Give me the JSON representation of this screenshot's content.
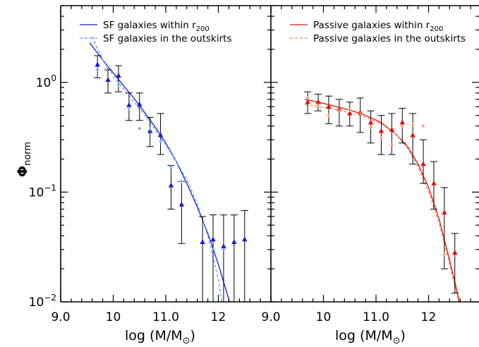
{
  "chart_data": [
    {
      "type": "scatter",
      "panel": "left",
      "xlabel": "log (M/M",
      "xlabel_sub": "⊙",
      "xlabel_close": ")",
      "ylabel": "Φ",
      "ylabel_sub": "norm",
      "xlim": [
        9.0,
        13.0
      ],
      "ylim": [
        0.01,
        5.0
      ],
      "yscale": "log",
      "xticks": [
        9.0,
        10,
        11.0,
        12
      ],
      "xtick_labels": [
        "9.0",
        "10",
        "11.0",
        "12"
      ],
      "yticks": [
        1.0,
        0.1,
        0.01
      ],
      "ytick_base": "10",
      "ytick_exps": [
        "0",
        "−1",
        "−2"
      ],
      "legend_position": "top-left",
      "series": [
        {
          "name": "SF galaxies within r",
          "name_sub": "200",
          "color": "#1a1ad8",
          "style": "solid",
          "marker": "triangle",
          "x": [
            9.7,
            9.9,
            10.1,
            10.3,
            10.5,
            10.7,
            10.9,
            11.1,
            11.3,
            11.7,
            11.9,
            12.1,
            12.3,
            12.5
          ],
          "y": [
            1.45,
            1.05,
            1.15,
            0.62,
            0.63,
            0.36,
            0.33,
            0.115,
            0.077,
            0.035,
            0.037,
            0.032,
            0.035,
            0.037
          ],
          "yerr_low": [
            1.1,
            0.8,
            0.82,
            0.45,
            0.45,
            0.26,
            0.22,
            0.07,
            0.034,
            0.005,
            0.005,
            0.005,
            0.005,
            0.005
          ],
          "yerr_high": [
            1.75,
            1.3,
            1.42,
            0.8,
            0.8,
            0.48,
            0.52,
            0.175,
            0.125,
            0.06,
            0.062,
            0.062,
            0.062,
            0.068
          ],
          "fit_x": [
            9.55,
            9.8,
            10.0,
            10.2,
            10.4,
            10.6,
            10.8,
            11.0,
            11.2,
            11.4,
            11.6,
            11.8,
            12.0,
            12.2,
            12.35
          ],
          "fit_y": [
            2.3,
            1.6,
            1.22,
            0.93,
            0.71,
            0.53,
            0.39,
            0.28,
            0.19,
            0.12,
            0.073,
            0.042,
            0.022,
            0.0105,
            0.0058
          ]
        },
        {
          "name": "SF galaxies in the outskirts",
          "color": "#5aa0e6",
          "style": "dashed",
          "marker": "plus",
          "x": [
            9.7,
            9.9,
            10.1,
            10.3,
            10.5,
            10.7,
            10.9,
            11.1,
            11.3,
            11.9,
            12.1
          ],
          "y": [
            1.3,
            1.35,
            0.95,
            0.58,
            0.38,
            0.37,
            0.29,
            0.17,
            0.125,
            0.03,
            0.03
          ],
          "fit_x": [
            9.6,
            9.8,
            10.0,
            10.2,
            10.4,
            10.6,
            10.8,
            11.0,
            11.2,
            11.4,
            11.6,
            11.8,
            12.0,
            12.15
          ],
          "fit_y": [
            2.6,
            1.6,
            1.15,
            0.87,
            0.66,
            0.5,
            0.37,
            0.27,
            0.19,
            0.13,
            0.078,
            0.04,
            0.016,
            0.0055
          ]
        }
      ]
    },
    {
      "type": "scatter",
      "panel": "right",
      "xlabel": "log (M/M",
      "xlabel_sub": "⊙",
      "xlabel_close": ")",
      "xlim": [
        9.0,
        13.0
      ],
      "ylim": [
        0.01,
        5.0
      ],
      "yscale": "log",
      "xticks": [
        9.0,
        10,
        11.0,
        12
      ],
      "xtick_labels": [
        "9.0",
        "10",
        "11.0",
        "12"
      ],
      "legend_position": "top-left",
      "series": [
        {
          "name": "Passive galaxies within r",
          "name_sub": "200",
          "color": "#e01010",
          "style": "solid",
          "marker": "triangle",
          "x": [
            9.7,
            9.9,
            10.1,
            10.3,
            10.5,
            10.7,
            10.9,
            11.1,
            11.3,
            11.5,
            11.7,
            11.9,
            12.1,
            12.3,
            12.5
          ],
          "y": [
            0.66,
            0.66,
            0.6,
            0.57,
            0.52,
            0.53,
            0.43,
            0.36,
            0.37,
            0.43,
            0.33,
            0.18,
            0.12,
            0.065,
            0.028
          ],
          "yerr_low": [
            0.52,
            0.55,
            0.42,
            0.4,
            0.4,
            0.35,
            0.28,
            0.22,
            0.22,
            0.28,
            0.18,
            0.12,
            0.07,
            0.02,
            0.012
          ],
          "yerr_high": [
            0.82,
            0.78,
            0.75,
            0.7,
            0.66,
            0.72,
            0.55,
            0.5,
            0.52,
            0.58,
            0.52,
            0.3,
            0.19,
            0.11,
            0.042
          ],
          "fit_x": [
            9.65,
            9.9,
            10.2,
            10.5,
            10.8,
            11.1,
            11.4,
            11.6,
            11.8,
            12.0,
            12.2,
            12.4,
            12.55,
            12.68
          ],
          "fit_y": [
            0.7,
            0.66,
            0.61,
            0.56,
            0.5,
            0.43,
            0.33,
            0.26,
            0.18,
            0.11,
            0.057,
            0.024,
            0.012,
            0.0058
          ]
        },
        {
          "name": "Passive galaxies in the outskirts",
          "color": "#f08c5a",
          "style": "dashed",
          "marker": "plus",
          "x": [
            9.7,
            9.9,
            10.1,
            10.3,
            10.5,
            10.7,
            10.9,
            11.1,
            11.3,
            11.5,
            11.7,
            11.9,
            12.3
          ],
          "y": [
            0.72,
            0.62,
            0.5,
            0.56,
            0.56,
            0.52,
            0.39,
            0.31,
            0.27,
            0.4,
            0.41,
            0.4,
            0.027
          ],
          "fit_x": [
            9.65,
            9.9,
            10.2,
            10.5,
            10.8,
            11.1,
            11.4,
            11.6,
            11.8,
            12.0,
            12.2,
            12.4,
            12.55,
            12.65
          ],
          "fit_y": [
            0.63,
            0.6,
            0.57,
            0.53,
            0.48,
            0.42,
            0.33,
            0.25,
            0.17,
            0.1,
            0.052,
            0.022,
            0.011,
            0.0058
          ]
        }
      ]
    }
  ]
}
